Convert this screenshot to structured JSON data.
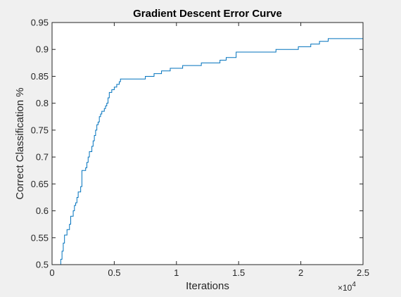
{
  "chart_data": {
    "type": "line",
    "title": "Gradient Descent Error Curve",
    "xlabel": "Iterations",
    "ylabel": "Correct Classification %",
    "x_multiplier": "×10",
    "x_multiplier_exp": "4",
    "xlim": [
      0,
      2.5
    ],
    "ylim": [
      0.5,
      0.95
    ],
    "x_ticks": [
      0,
      0.5,
      1,
      1.5,
      2,
      2.5
    ],
    "x_tick_labels": [
      "0",
      "0.5",
      "1",
      "1.5",
      "2",
      "2.5"
    ],
    "y_ticks": [
      0.5,
      0.55,
      0.6,
      0.65,
      0.7,
      0.75,
      0.8,
      0.85,
      0.9,
      0.95
    ],
    "y_tick_labels": [
      "0.5",
      "0.55",
      "0.6",
      "0.65",
      "0.7",
      "0.75",
      "0.8",
      "0.85",
      "0.9",
      "0.95"
    ],
    "grid": false,
    "line_style": "step",
    "series": [
      {
        "color": "#0072bd",
        "x": [
          0,
          0.07,
          0.08,
          0.09,
          0.1,
          0.11,
          0.12,
          0.14,
          0.15,
          0.17,
          0.18,
          0.19,
          0.2,
          0.21,
          0.22,
          0.23,
          0.24,
          0.25,
          0.26,
          0.27,
          0.28,
          0.29,
          0.3,
          0.32,
          0.33,
          0.34,
          0.35,
          0.36,
          0.37,
          0.38,
          0.39,
          0.4,
          0.41,
          0.42,
          0.43,
          0.44,
          0.45,
          0.46,
          0.48,
          0.5,
          0.52,
          0.54,
          0.55,
          0.56,
          0.57,
          0.58,
          0.59,
          0.6,
          0.75,
          0.82,
          0.88,
          0.95,
          1.05,
          1.2,
          1.35,
          1.4,
          1.48,
          1.8,
          1.98,
          2.08,
          2.15,
          2.22,
          2.5
        ],
        "y": [
          0.5,
          0.51,
          0.525,
          0.54,
          0.555,
          0.555,
          0.565,
          0.575,
          0.59,
          0.6,
          0.61,
          0.615,
          0.625,
          0.635,
          0.635,
          0.645,
          0.675,
          0.675,
          0.675,
          0.68,
          0.69,
          0.7,
          0.71,
          0.72,
          0.73,
          0.74,
          0.75,
          0.76,
          0.765,
          0.775,
          0.78,
          0.785,
          0.785,
          0.79,
          0.795,
          0.8,
          0.81,
          0.82,
          0.825,
          0.83,
          0.835,
          0.84,
          0.845,
          0.845,
          0.845,
          0.845,
          0.845,
          0.845,
          0.85,
          0.855,
          0.86,
          0.865,
          0.87,
          0.875,
          0.88,
          0.885,
          0.895,
          0.9,
          0.905,
          0.91,
          0.915,
          0.92,
          0.92
        ]
      }
    ]
  }
}
